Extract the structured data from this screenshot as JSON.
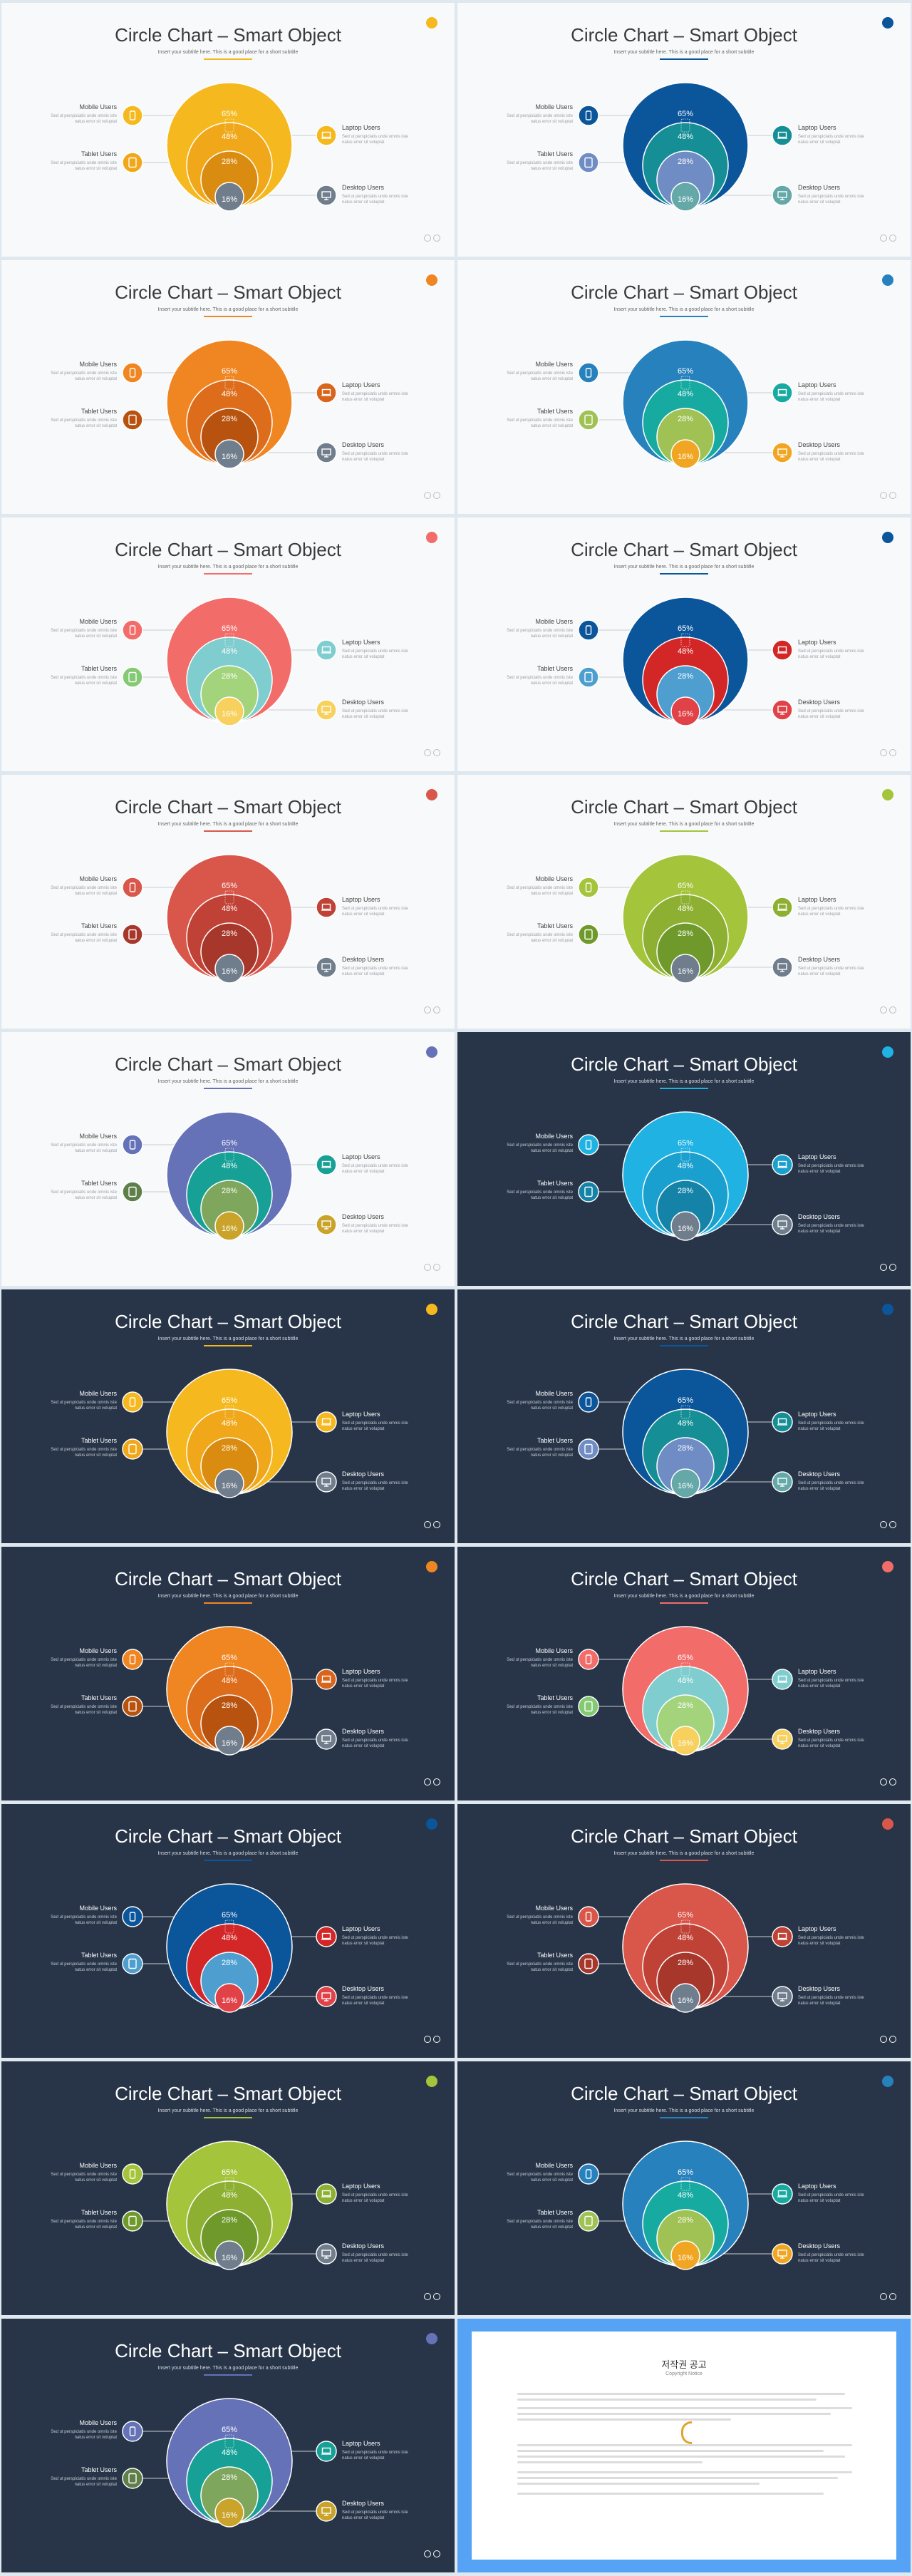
{
  "chart_common": {
    "type": "pie",
    "percent_labels": [
      "65%",
      "48%",
      "28%",
      "16%"
    ],
    "left_items": [
      {
        "title": "Mobile Users",
        "desc1": "Sed ut perspiciatis unde omnis iste",
        "desc2": "natus error sit voluptat"
      },
      {
        "title": "Tablet Users",
        "desc1": "Sed ut perspiciatis unde omnis iste",
        "desc2": "natus error sit voluptat"
      }
    ],
    "right_items": [
      {
        "title": "Laptop Users",
        "desc1": "Sed ut perspiciatis unde omnis iste",
        "desc2": "natus error sit voluptat"
      },
      {
        "title": "Desktop Users",
        "desc1": "Sed ut perspiciatis unde omnis iste",
        "desc2": "natus error sit voluptat"
      }
    ]
  },
  "slide_title": "Circle Chart – Smart Object",
  "slide_subtitle": "Insert your subtitle here. This is a good place for a short subtitle",
  "slides": [
    {
      "theme": "light",
      "accent": "#f5b91f",
      "circles": [
        "#f5b91f",
        "#f0a81a",
        "#d98c10",
        "#6f7d8c"
      ],
      "icons": [
        "#f5b91f",
        "#f0a81a",
        "#f5b91f",
        "#6f7d8c"
      ]
    },
    {
      "theme": "light",
      "accent": "#0b559b",
      "circles": [
        "#0b559b",
        "#158f95",
        "#6f8cc5",
        "#65a8a8"
      ],
      "icons": [
        "#0b559b",
        "#6f8cc5",
        "#158f95",
        "#65a8a8"
      ]
    },
    {
      "theme": "light",
      "accent": "#f08622",
      "circles": [
        "#f08622",
        "#dd6d1a",
        "#b8530f",
        "#6f7d8c"
      ],
      "icons": [
        "#f08622",
        "#b8530f",
        "#d9641b",
        "#6f7d8c"
      ]
    },
    {
      "theme": "light",
      "accent": "#2781bd",
      "circles": [
        "#2781bd",
        "#17aaa0",
        "#a0c254",
        "#f0a623"
      ],
      "icons": [
        "#2781bd",
        "#a0c254",
        "#17aaa0",
        "#f0a623"
      ]
    },
    {
      "theme": "light",
      "accent": "#f26d6a",
      "circles": [
        "#f26d6a",
        "#7fcdcf",
        "#a3d47c",
        "#f7d05e"
      ],
      "icons": [
        "#f26d6a",
        "#84c974",
        "#7fcdcf",
        "#f7d05e"
      ]
    },
    {
      "theme": "light",
      "accent": "#0b559b",
      "circles": [
        "#0b559b",
        "#d32627",
        "#4e9fcf",
        "#e04247"
      ],
      "icons": [
        "#0b559b",
        "#4e9fcf",
        "#d32627",
        "#e04247"
      ]
    },
    {
      "theme": "light",
      "accent": "#d9574a",
      "circles": [
        "#d9574a",
        "#c04236",
        "#a7372b",
        "#6f7d8c"
      ],
      "icons": [
        "#d9574a",
        "#a7372b",
        "#c04236",
        "#6f7d8c"
      ]
    },
    {
      "theme": "light",
      "accent": "#a4c43b",
      "circles": [
        "#a4c43b",
        "#8db033",
        "#6f9a2b",
        "#6f7d8c"
      ],
      "icons": [
        "#a4c43b",
        "#6f9a2b",
        "#8db033",
        "#6f7d8c"
      ]
    },
    {
      "theme": "light",
      "accent": "#6572b8",
      "circles": [
        "#6572b8",
        "#17a196",
        "#7ea65c",
        "#c9a32a"
      ],
      "icons": [
        "#6572b8",
        "#5f7f4a",
        "#17a196",
        "#c9a32a"
      ]
    },
    {
      "theme": "dark",
      "accent": "#1fb2e3",
      "circles": [
        "#1fb2e3",
        "#1aa0ce",
        "#1583a8",
        "#6f7d8c"
      ],
      "icons": [
        "#1fb2e3",
        "#1583a8",
        "#1aa0ce",
        "#6f7d8c"
      ]
    },
    {
      "theme": "dark",
      "accent": "#f5b91f",
      "circles": [
        "#f5b91f",
        "#f0a81a",
        "#d98c10",
        "#6f7d8c"
      ],
      "icons": [
        "#f5b91f",
        "#f0a81a",
        "#f5b91f",
        "#6f7d8c"
      ]
    },
    {
      "theme": "dark",
      "accent": "#0b559b",
      "circles": [
        "#0b559b",
        "#158f95",
        "#6f8cc5",
        "#65a8a8"
      ],
      "icons": [
        "#0b559b",
        "#6f8cc5",
        "#158f95",
        "#65a8a8"
      ]
    },
    {
      "theme": "dark",
      "accent": "#f08622",
      "circles": [
        "#f08622",
        "#dd6d1a",
        "#b8530f",
        "#6f7d8c"
      ],
      "icons": [
        "#f08622",
        "#b8530f",
        "#d9641b",
        "#6f7d8c"
      ]
    },
    {
      "theme": "dark",
      "accent": "#f26d6a",
      "circles": [
        "#f26d6a",
        "#7fcdcf",
        "#a3d47c",
        "#f7d05e"
      ],
      "icons": [
        "#f26d6a",
        "#84c974",
        "#7fcdcf",
        "#f7d05e"
      ]
    },
    {
      "theme": "dark",
      "accent": "#0b559b",
      "circles": [
        "#0b559b",
        "#d32627",
        "#4e9fcf",
        "#e04247"
      ],
      "icons": [
        "#0b559b",
        "#4e9fcf",
        "#d32627",
        "#e04247"
      ]
    },
    {
      "theme": "dark",
      "accent": "#d9574a",
      "circles": [
        "#d9574a",
        "#c04236",
        "#a7372b",
        "#6f7d8c"
      ],
      "icons": [
        "#d9574a",
        "#a7372b",
        "#c04236",
        "#6f7d8c"
      ]
    },
    {
      "theme": "dark",
      "accent": "#a4c43b",
      "circles": [
        "#a4c43b",
        "#8db033",
        "#6f9a2b",
        "#6f7d8c"
      ],
      "icons": [
        "#a4c43b",
        "#6f9a2b",
        "#8db033",
        "#6f7d8c"
      ]
    },
    {
      "theme": "dark",
      "accent": "#2781bd",
      "circles": [
        "#2781bd",
        "#17aaa0",
        "#a0c254",
        "#f0a623"
      ],
      "icons": [
        "#2781bd",
        "#a0c254",
        "#17aaa0",
        "#f0a623"
      ]
    },
    {
      "theme": "dark",
      "accent": "#6572b8",
      "circles": [
        "#6572b8",
        "#17a196",
        "#7ea65c",
        "#c9a32a"
      ],
      "icons": [
        "#6572b8",
        "#5f7f4a",
        "#17a196",
        "#c9a32a"
      ]
    }
  ],
  "copyright": {
    "title": "저작권 공고",
    "subtitle": "Copyright Notice"
  }
}
